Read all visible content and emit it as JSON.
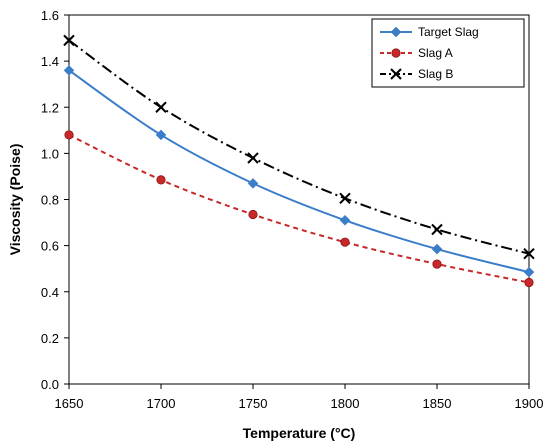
{
  "chart_data": {
    "type": "line",
    "title": "",
    "xlabel": "Temperature (°C)",
    "ylabel": "Viscosity (Poise)",
    "x": [
      1650,
      1700,
      1750,
      1800,
      1850,
      1900
    ],
    "xlim": [
      1650,
      1900
    ],
    "ylim": [
      0,
      1.6
    ],
    "x_ticks": [
      "1650",
      "1700",
      "1750",
      "1800",
      "1850",
      "1900"
    ],
    "y_ticks": [
      "0.0",
      "0.2",
      "0.4",
      "0.6",
      "0.8",
      "1.0",
      "1.2",
      "1.4",
      "1.6"
    ],
    "grid": false,
    "legend_position": "top-right",
    "series": [
      {
        "name": "Target Slag",
        "values": [
          1.36,
          1.08,
          0.87,
          0.71,
          0.585,
          0.485
        ],
        "color": "#3a7dc8",
        "line_style": "solid",
        "marker": "diamond"
      },
      {
        "name": "Slag A",
        "values": [
          1.08,
          0.885,
          0.735,
          0.615,
          0.52,
          0.44
        ],
        "color": "#c8282a",
        "line_style": "dashed",
        "marker": "circle"
      },
      {
        "name": "Slag B",
        "values": [
          1.49,
          1.2,
          0.98,
          0.805,
          0.67,
          0.565
        ],
        "color": "#000000",
        "line_style": "dash-dot",
        "marker": "x"
      }
    ]
  }
}
